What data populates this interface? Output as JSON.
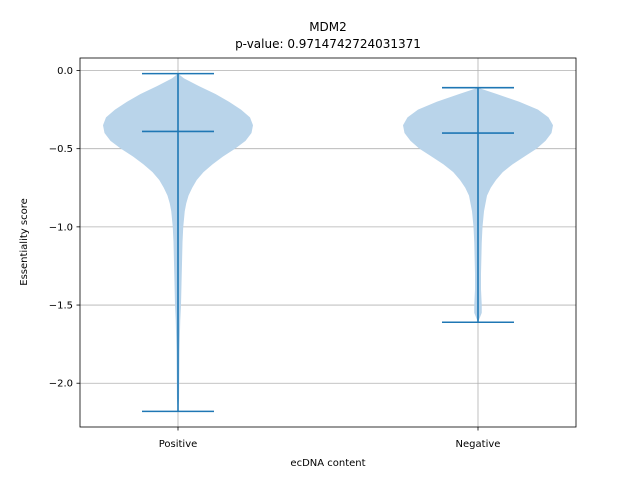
{
  "chart_data": {
    "type": "violin",
    "title": "MDM2",
    "subtitle": "p-value: 0.9714742724031371",
    "xlabel": "ecDNA content",
    "ylabel": "Essentiality score",
    "ylim": [
      -2.28,
      0.08
    ],
    "yticks": [
      0.0,
      -0.5,
      -1.0,
      -1.5,
      -2.0
    ],
    "ytick_labels": [
      "0.0",
      "−0.5",
      "−1.0",
      "−1.5",
      "−2.0"
    ],
    "grid": true,
    "categories": [
      "Positive",
      "Negative"
    ],
    "colors": {
      "body": "#b9d4ea",
      "lines": "#1f77b4",
      "grid": "#b0b0b0"
    },
    "violins": [
      {
        "category": "Positive",
        "max": -0.02,
        "median": -0.39,
        "min": -2.18,
        "density": [
          [
            -0.02,
            0.0
          ],
          [
            -0.05,
            0.08
          ],
          [
            -0.1,
            0.28
          ],
          [
            -0.15,
            0.5
          ],
          [
            -0.2,
            0.68
          ],
          [
            -0.25,
            0.84
          ],
          [
            -0.3,
            0.96
          ],
          [
            -0.35,
            1.0
          ],
          [
            -0.4,
            0.98
          ],
          [
            -0.45,
            0.9
          ],
          [
            -0.5,
            0.76
          ],
          [
            -0.55,
            0.6
          ],
          [
            -0.6,
            0.46
          ],
          [
            -0.65,
            0.34
          ],
          [
            -0.7,
            0.25
          ],
          [
            -0.75,
            0.19
          ],
          [
            -0.8,
            0.14
          ],
          [
            -0.85,
            0.11
          ],
          [
            -0.9,
            0.09
          ],
          [
            -1.0,
            0.07
          ],
          [
            -1.1,
            0.06
          ],
          [
            -1.2,
            0.055
          ],
          [
            -1.3,
            0.05
          ],
          [
            -1.4,
            0.045
          ],
          [
            -1.5,
            0.04
          ],
          [
            -1.6,
            0.03
          ],
          [
            -1.7,
            0.025
          ],
          [
            -1.8,
            0.02
          ],
          [
            -1.9,
            0.018
          ],
          [
            -2.0,
            0.016
          ],
          [
            -2.1,
            0.014
          ],
          [
            -2.18,
            0.0
          ]
        ]
      },
      {
        "category": "Negative",
        "max": -0.11,
        "median": -0.4,
        "min": -1.61,
        "density": [
          [
            -0.11,
            0.0
          ],
          [
            -0.15,
            0.25
          ],
          [
            -0.2,
            0.55
          ],
          [
            -0.25,
            0.8
          ],
          [
            -0.3,
            0.94
          ],
          [
            -0.35,
            1.0
          ],
          [
            -0.4,
            0.98
          ],
          [
            -0.45,
            0.9
          ],
          [
            -0.5,
            0.78
          ],
          [
            -0.55,
            0.62
          ],
          [
            -0.6,
            0.46
          ],
          [
            -0.65,
            0.33
          ],
          [
            -0.7,
            0.24
          ],
          [
            -0.75,
            0.17
          ],
          [
            -0.8,
            0.12
          ],
          [
            -0.9,
            0.08
          ],
          [
            -1.0,
            0.06
          ],
          [
            -1.1,
            0.05
          ],
          [
            -1.2,
            0.045
          ],
          [
            -1.3,
            0.04
          ],
          [
            -1.4,
            0.04
          ],
          [
            -1.5,
            0.05
          ],
          [
            -1.55,
            0.05
          ],
          [
            -1.61,
            0.0
          ]
        ]
      }
    ]
  }
}
